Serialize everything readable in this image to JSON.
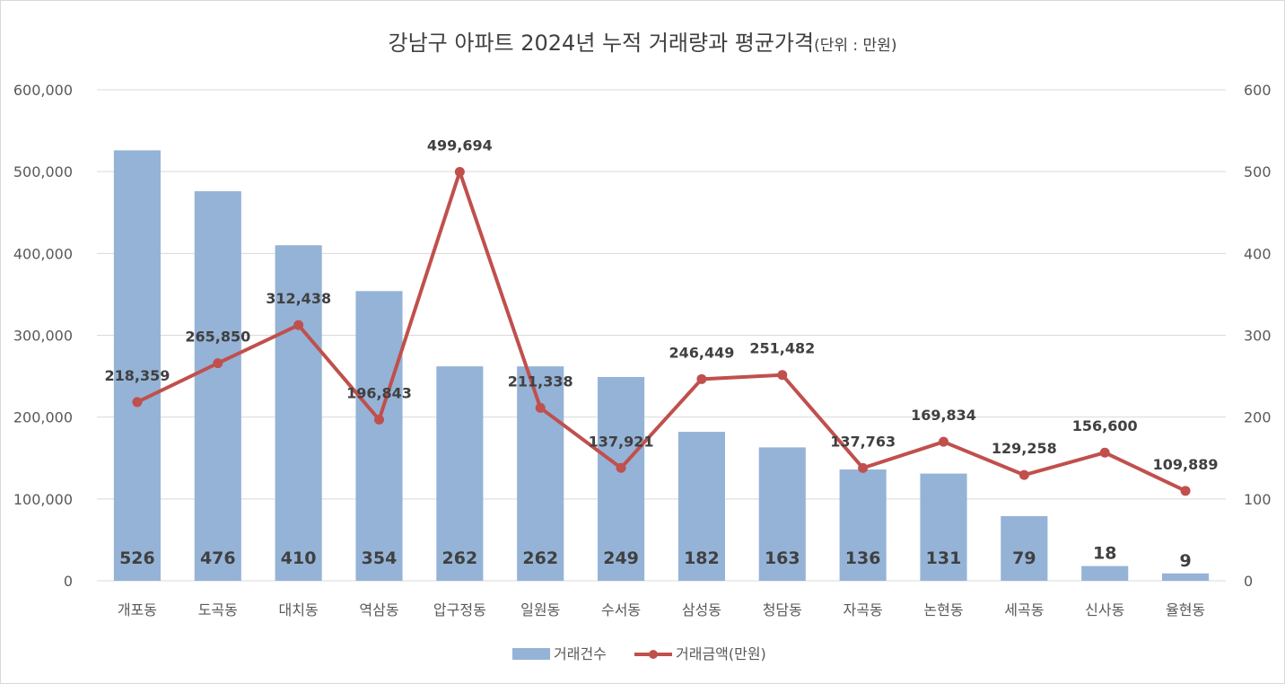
{
  "chart_data": {
    "type": "bar",
    "title": "강남구 아파트 2024년 누적 거래량과 평균가격",
    "title_unit": "(단위 : 만원)",
    "categories": [
      "개포동",
      "도곡동",
      "대치동",
      "역삼동",
      "압구정동",
      "일원동",
      "수서동",
      "삼성동",
      "청담동",
      "자곡동",
      "논현동",
      "세곡동",
      "신사동",
      "율현동"
    ],
    "series": [
      {
        "name": "거래건수",
        "type": "bar",
        "axis": "right",
        "color": "#95B3D7",
        "values": [
          526,
          476,
          410,
          354,
          262,
          262,
          249,
          182,
          163,
          136,
          131,
          79,
          18,
          9
        ],
        "labels": [
          "526",
          "476",
          "410",
          "354",
          "262",
          "262",
          "249",
          "182",
          "163",
          "136",
          "131",
          "79",
          "18",
          "9"
        ]
      },
      {
        "name": "거래금액(만원)",
        "type": "line",
        "axis": "left",
        "color": "#C0504D",
        "values": [
          218359,
          265850,
          312438,
          196843,
          499694,
          211338,
          137921,
          246449,
          251482,
          137763,
          169834,
          129258,
          156600,
          109889
        ],
        "labels": [
          "218,359",
          "265,850",
          "312,438",
          "196,843",
          "499,694",
          "211,338",
          "137,921",
          "246,449",
          "251,482",
          "137,763",
          "169,834",
          "129,258",
          "156,600",
          "109,889"
        ]
      }
    ],
    "y_left": {
      "range": [
        0,
        600000
      ],
      "ticks": [
        0,
        100000,
        200000,
        300000,
        400000,
        500000,
        600000
      ],
      "tick_labels": [
        "0",
        "100,000",
        "200,000",
        "300,000",
        "400,000",
        "500,000",
        "600,000"
      ]
    },
    "y_right": {
      "range": [
        0,
        600
      ],
      "ticks": [
        0,
        100,
        200,
        300,
        400,
        500,
        600
      ],
      "tick_labels": [
        "0",
        "100",
        "200",
        "300",
        "400",
        "500",
        "600"
      ]
    },
    "grid": true,
    "legend": "bottom"
  }
}
